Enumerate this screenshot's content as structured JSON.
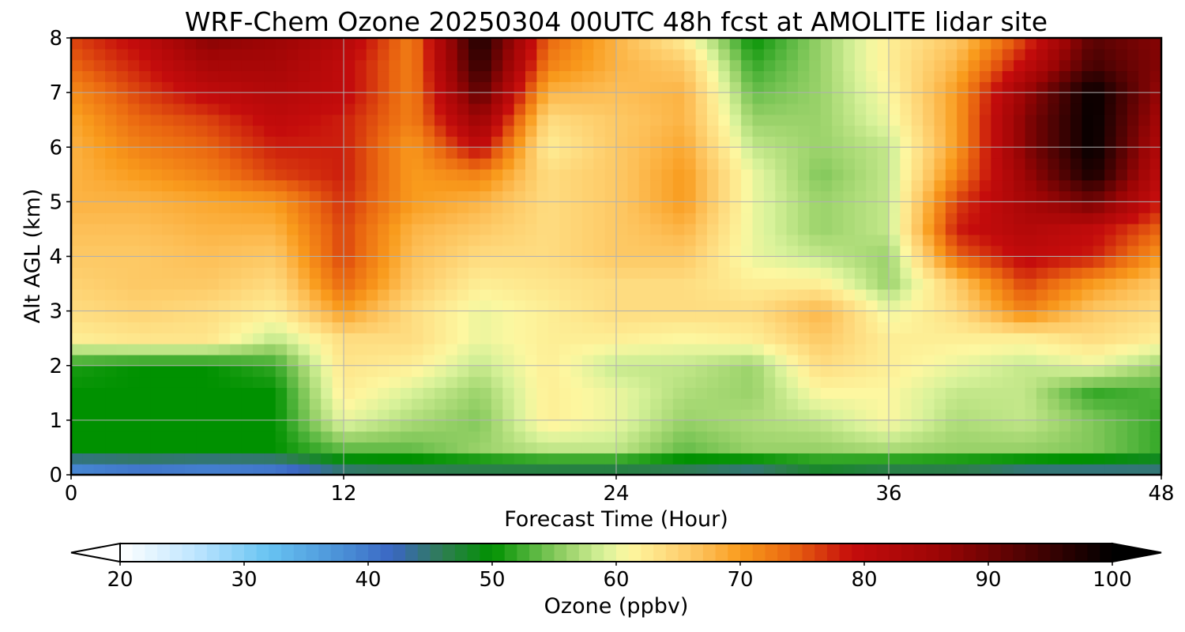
{
  "chart_data": {
    "type": "heatmap",
    "title": "WRF-Chem Ozone  20250304 00UTC 48h fcst at AMOLITE lidar site",
    "xlabel": "Forecast Time (Hour)",
    "ylabel": "Alt AGL (km)",
    "xlim": [
      0,
      48
    ],
    "ylim": [
      0,
      8
    ],
    "x_ticks": [
      "0",
      "12",
      "24",
      "36",
      "48"
    ],
    "y_ticks": [
      "0",
      "1",
      "2",
      "3",
      "4",
      "5",
      "6",
      "7",
      "8"
    ],
    "grid": true,
    "x": [
      0,
      3,
      6,
      9,
      12,
      15,
      18,
      21,
      24,
      27,
      30,
      33,
      36,
      39,
      42,
      45,
      48
    ],
    "y": [
      0,
      0.5,
      1,
      1.5,
      2,
      2.5,
      3,
      3.5,
      4,
      4.5,
      5,
      5.5,
      6,
      6.5,
      7,
      7.5,
      8
    ],
    "values": [
      [
        36,
        38,
        37,
        38,
        43,
        44,
        44,
        44,
        44,
        44,
        42,
        46,
        44,
        44,
        42,
        42,
        43
      ],
      [
        50,
        50,
        50,
        50,
        54,
        54,
        56,
        58,
        58,
        54,
        56,
        56,
        57,
        56,
        56,
        55,
        52
      ],
      [
        50,
        50,
        50,
        50,
        60,
        57,
        55,
        62,
        60,
        56,
        57,
        58,
        61,
        57,
        58,
        55,
        52
      ],
      [
        50,
        50,
        50,
        50,
        62,
        59,
        56,
        62,
        60,
        57,
        56,
        61,
        61,
        58,
        58,
        52,
        53
      ],
      [
        51,
        50,
        50,
        52,
        63,
        62,
        58,
        62,
        58,
        58,
        56,
        64,
        62,
        60,
        58,
        60,
        56
      ],
      [
        62,
        63,
        63,
        58,
        64,
        64,
        60,
        62,
        62,
        61,
        62,
        66,
        62,
        62,
        62,
        64,
        62
      ],
      [
        64,
        65,
        64,
        62,
        70,
        64,
        60,
        62,
        64,
        64,
        64,
        68,
        60,
        64,
        72,
        66,
        64
      ],
      [
        65,
        66,
        66,
        64,
        74,
        66,
        62,
        63,
        64,
        64,
        62,
        62,
        56,
        66,
        76,
        70,
        66
      ],
      [
        66,
        66,
        67,
        66,
        76,
        67,
        64,
        64,
        66,
        66,
        60,
        58,
        56,
        74,
        80,
        78,
        70
      ],
      [
        67,
        67,
        68,
        68,
        76,
        68,
        66,
        64,
        66,
        68,
        60,
        56,
        58,
        78,
        82,
        80,
        74
      ],
      [
        68,
        68,
        69,
        70,
        77,
        70,
        68,
        64,
        66,
        70,
        60,
        56,
        58,
        76,
        84,
        90,
        78
      ],
      [
        68,
        70,
        72,
        76,
        78,
        70,
        72,
        64,
        66,
        70,
        60,
        55,
        58,
        72,
        86,
        98,
        80
      ],
      [
        68,
        72,
        74,
        78,
        78,
        70,
        80,
        62,
        66,
        69,
        58,
        56,
        58,
        70,
        88,
        100,
        82
      ],
      [
        69,
        74,
        76,
        80,
        78,
        72,
        86,
        64,
        66,
        68,
        56,
        56,
        60,
        70,
        88,
        100,
        84
      ],
      [
        71,
        76,
        80,
        82,
        80,
        72,
        92,
        68,
        67,
        68,
        54,
        56,
        61,
        70,
        86,
        100,
        86
      ],
      [
        74,
        78,
        84,
        84,
        80,
        72,
        96,
        72,
        68,
        66,
        52,
        56,
        62,
        68,
        80,
        94,
        88
      ],
      [
        76,
        80,
        88,
        86,
        82,
        72,
        98,
        74,
        68,
        62,
        50,
        56,
        62,
        66,
        76,
        92,
        88
      ]
    ],
    "colorbar": {
      "label": "Ozone  (ppbv)",
      "min": 20,
      "max": 100,
      "ticks": [
        "20",
        "30",
        "40",
        "50",
        "60",
        "70",
        "80",
        "90",
        "100"
      ],
      "extend": "both"
    },
    "colormap_stops": [
      {
        "v": 20,
        "c": "#ffffff"
      },
      {
        "v": 26,
        "c": "#bfe6ff"
      },
      {
        "v": 32,
        "c": "#67c3f2"
      },
      {
        "v": 38,
        "c": "#4a8fd6"
      },
      {
        "v": 42,
        "c": "#3a66c2"
      },
      {
        "v": 46,
        "c": "#2f7d52"
      },
      {
        "v": 50,
        "c": "#009100"
      },
      {
        "v": 53,
        "c": "#4fb33a"
      },
      {
        "v": 56,
        "c": "#9ad26a"
      },
      {
        "v": 59,
        "c": "#d8f29a"
      },
      {
        "v": 61,
        "c": "#fdf7a0"
      },
      {
        "v": 64,
        "c": "#fedc80"
      },
      {
        "v": 67,
        "c": "#fdbf57"
      },
      {
        "v": 70,
        "c": "#f99b1c"
      },
      {
        "v": 74,
        "c": "#ea6710"
      },
      {
        "v": 79,
        "c": "#c50c0c"
      },
      {
        "v": 86,
        "c": "#9c0505"
      },
      {
        "v": 92,
        "c": "#5a0303"
      },
      {
        "v": 100,
        "c": "#000000"
      }
    ]
  }
}
